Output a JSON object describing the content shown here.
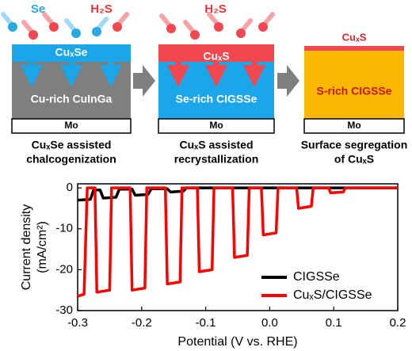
{
  "diagram": {
    "panels": [
      {
        "top_labels": [
          "Se",
          "H₂S"
        ],
        "layer_top": "CuₓSe",
        "layer_main": "Cu-rich CuInGa",
        "substrate": "Mo",
        "caption": [
          "CuₓSe assisted",
          "chalcogenization"
        ]
      },
      {
        "top_labels": [
          "H₂S"
        ],
        "layer_top": "CuₓS",
        "layer_main": "Se-rich CIGSSe",
        "substrate": "Mo",
        "caption": [
          "CuₓS assisted",
          "recrystallization"
        ]
      },
      {
        "layer_top": "CuₓS",
        "layer_main": "S-rich CIGSSe",
        "substrate": "Mo",
        "caption": [
          "Surface segregation",
          "of CuₓS"
        ]
      }
    ]
  },
  "chart_data": {
    "type": "line",
    "xlabel": "Potential (V vs. RHE)",
    "ylabel": [
      "Current density",
      "(mA/cm²)"
    ],
    "xlim": [
      -0.3,
      0.2
    ],
    "ylim": [
      -30,
      1
    ],
    "xticks": [
      -0.3,
      -0.2,
      -0.1,
      {
        "value": 0,
        "label": "0.0"
      },
      0.1,
      0.2
    ],
    "yticks": [
      0,
      -10,
      -20,
      -30
    ],
    "legend": "lower right",
    "series": [
      {
        "name": "CIGSSe",
        "color": "#000000",
        "x": [
          -0.3,
          -0.28,
          -0.275,
          -0.265,
          -0.26,
          -0.24,
          -0.235,
          -0.215,
          -0.21,
          -0.19,
          -0.185,
          -0.16,
          -0.155,
          -0.135,
          -0.13,
          0.2
        ],
        "values": [
          -3,
          -2.8,
          -0.5,
          -0.5,
          -2.5,
          -2.3,
          -0.3,
          -0.3,
          -1.8,
          -1.6,
          -0.2,
          -0.2,
          -1,
          -0.8,
          0,
          0
        ]
      },
      {
        "name": "CuₓS/CIGSSe",
        "color": "#ff0000",
        "x": [
          -0.3,
          -0.29,
          -0.285,
          -0.273,
          -0.27,
          -0.25,
          -0.247,
          -0.218,
          -0.215,
          -0.195,
          -0.192,
          -0.163,
          -0.16,
          -0.14,
          -0.137,
          -0.113,
          -0.11,
          -0.09,
          -0.087,
          -0.058,
          -0.055,
          -0.035,
          -0.032,
          -0.013,
          -0.01,
          0.01,
          0.013,
          0.042,
          0.045,
          0.065,
          0.068,
          0.092,
          0.095,
          0.115,
          0.118,
          0.2
        ],
        "values": [
          -26.5,
          -26,
          0,
          0,
          -25.5,
          -25,
          0,
          0,
          -25,
          -24.5,
          0,
          0,
          -23.5,
          -23,
          0,
          0,
          -20.5,
          -20,
          0,
          0,
          -17,
          -16.5,
          0,
          0,
          -11.5,
          -11,
          0,
          0,
          -5,
          -4.5,
          0,
          0,
          -1.2,
          -1,
          0,
          0
        ]
      }
    ]
  }
}
